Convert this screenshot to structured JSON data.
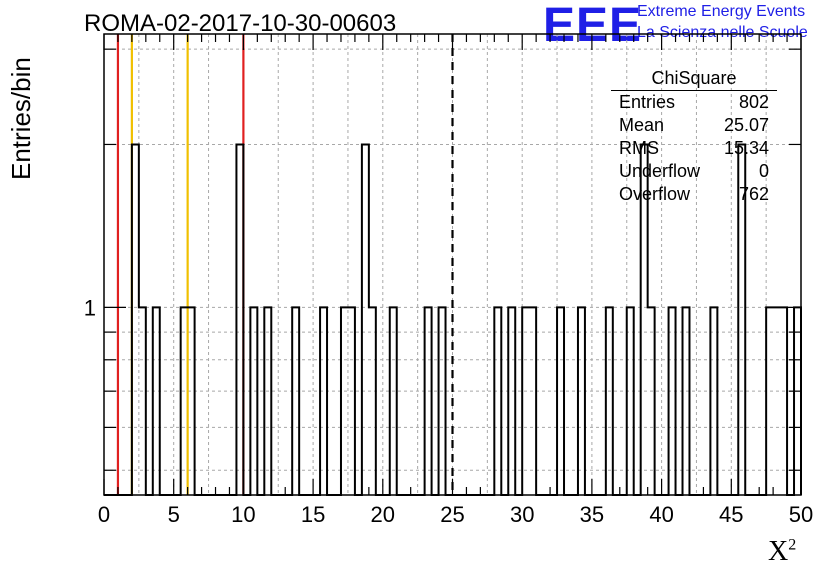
{
  "title": "ROMA-02-2017-10-30-00603",
  "logo": {
    "mark": "EEE",
    "line1": "Extreme Energy Events",
    "line2": "La Scienza nelle Scuole",
    "color": "#1f1fe6"
  },
  "stats": {
    "name": "ChiSquare",
    "rows": [
      {
        "label": "Entries",
        "value": "802"
      },
      {
        "label": "Mean",
        "value": "25.07"
      },
      {
        "label": "RMS",
        "value": "15.34"
      },
      {
        "label": "Underflow",
        "value": "0"
      },
      {
        "label": "Overflow",
        "value": "762"
      }
    ]
  },
  "chart_data": {
    "type": "bar",
    "xlabel": "X",
    "xlabel_sup": "2",
    "ylabel": "Entries/bin",
    "xlim": [
      0,
      50
    ],
    "ylim": [
      0.45,
      3.2
    ],
    "log_y": true,
    "grid": true,
    "x_ticks": [
      "0",
      "5",
      "10",
      "15",
      "20",
      "25",
      "30",
      "35",
      "40",
      "45",
      "50"
    ],
    "y_ticks": [
      "1"
    ],
    "bin_width": 0.5,
    "bins": [
      {
        "x": 2.0,
        "y": 2
      },
      {
        "x": 2.5,
        "y": 1
      },
      {
        "x": 3.5,
        "y": 1
      },
      {
        "x": 5.5,
        "y": 1
      },
      {
        "x": 6.0,
        "y": 1
      },
      {
        "x": 9.5,
        "y": 2
      },
      {
        "x": 10.5,
        "y": 1
      },
      {
        "x": 11.5,
        "y": 1
      },
      {
        "x": 13.5,
        "y": 1
      },
      {
        "x": 15.5,
        "y": 1
      },
      {
        "x": 17.0,
        "y": 1
      },
      {
        "x": 17.5,
        "y": 1
      },
      {
        "x": 18.5,
        "y": 2
      },
      {
        "x": 19.0,
        "y": 1
      },
      {
        "x": 20.5,
        "y": 1
      },
      {
        "x": 23.0,
        "y": 1
      },
      {
        "x": 24.0,
        "y": 1
      },
      {
        "x": 28.0,
        "y": 1
      },
      {
        "x": 29.0,
        "y": 1
      },
      {
        "x": 30.0,
        "y": 1
      },
      {
        "x": 30.5,
        "y": 1
      },
      {
        "x": 32.5,
        "y": 1
      },
      {
        "x": 34.0,
        "y": 1
      },
      {
        "x": 36.0,
        "y": 1
      },
      {
        "x": 37.5,
        "y": 1
      },
      {
        "x": 38.5,
        "y": 2
      },
      {
        "x": 39.0,
        "y": 1
      },
      {
        "x": 40.5,
        "y": 1
      },
      {
        "x": 41.5,
        "y": 1
      },
      {
        "x": 43.5,
        "y": 1
      },
      {
        "x": 45.5,
        "y": 2
      },
      {
        "x": 47.5,
        "y": 1
      },
      {
        "x": 48.0,
        "y": 1
      },
      {
        "x": 48.5,
        "y": 1
      },
      {
        "x": 49.5,
        "y": 1
      }
    ],
    "reference_lines": [
      {
        "x": 1.0,
        "color": "#e02020",
        "style": "solid"
      },
      {
        "x": 2.0,
        "color": "#f0c000",
        "style": "solid"
      },
      {
        "x": 6.0,
        "color": "#f0c000",
        "style": "solid"
      },
      {
        "x": 10.0,
        "color": "#e02020",
        "style": "solid"
      },
      {
        "x": 25.0,
        "color": "#000000",
        "style": "dashed"
      }
    ]
  }
}
